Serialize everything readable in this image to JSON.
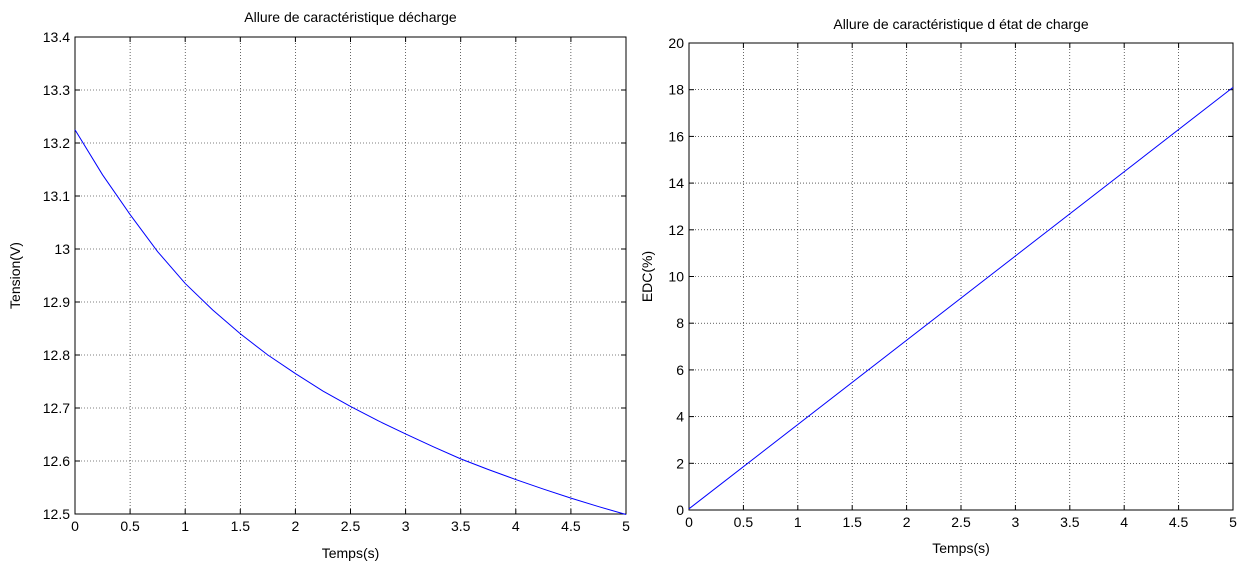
{
  "chart_data": [
    {
      "type": "line",
      "title": "Allure de caractéristique décharge",
      "xlabel": "Temps(s)",
      "ylabel": "Tension(V)",
      "xlim": [
        0,
        5
      ],
      "ylim": [
        12.5,
        13.4
      ],
      "xticks": [
        0,
        0.5,
        1,
        1.5,
        2,
        2.5,
        3,
        3.5,
        4,
        4.5,
        5
      ],
      "xtick_labels": [
        "0",
        "0.5",
        "1",
        "1.5",
        "2",
        "2.5",
        "3",
        "3.5",
        "4",
        "4.5",
        "5"
      ],
      "yticks": [
        12.5,
        12.6,
        12.7,
        12.8,
        12.9,
        13,
        13.1,
        13.2,
        13.3,
        13.4
      ],
      "ytick_labels": [
        "12.5",
        "12.6",
        "12.7",
        "12.8",
        "12.9",
        "13",
        "13.1",
        "13.2",
        "13.3",
        "13.4"
      ],
      "grid": true,
      "line_color": "#0000ff",
      "series": [
        {
          "x": [
            0,
            0.25,
            0.5,
            0.75,
            1,
            1.25,
            1.5,
            1.75,
            2,
            2.25,
            2.5,
            2.75,
            3,
            3.25,
            3.5,
            3.75,
            4,
            4.25,
            4.5,
            4.75,
            5
          ],
          "values": [
            13.225,
            13.14,
            13.065,
            12.995,
            12.935,
            12.885,
            12.84,
            12.8,
            12.765,
            12.732,
            12.703,
            12.676,
            12.651,
            12.627,
            12.604,
            12.584,
            12.565,
            12.547,
            12.53,
            12.514,
            12.499
          ]
        }
      ]
    },
    {
      "type": "line",
      "title": "Allure de caractéristique d état de charge",
      "xlabel": "Temps(s)",
      "ylabel": "EDC(%)",
      "xlim": [
        0,
        5
      ],
      "ylim": [
        0,
        20
      ],
      "xticks": [
        0,
        0.5,
        1,
        1.5,
        2,
        2.5,
        3,
        3.5,
        4,
        4.5,
        5
      ],
      "xtick_labels": [
        "0",
        "0.5",
        "1",
        "1.5",
        "2",
        "2.5",
        "3",
        "3.5",
        "4",
        "4.5",
        "5"
      ],
      "yticks": [
        0,
        2,
        4,
        6,
        8,
        10,
        12,
        14,
        16,
        18,
        20
      ],
      "ytick_labels": [
        "0",
        "2",
        "4",
        "6",
        "8",
        "10",
        "12",
        "14",
        "16",
        "18",
        "20"
      ],
      "grid": true,
      "line_color": "#0000ff",
      "series": [
        {
          "x": [
            0,
            5
          ],
          "values": [
            0.05,
            18.1
          ]
        }
      ]
    }
  ]
}
